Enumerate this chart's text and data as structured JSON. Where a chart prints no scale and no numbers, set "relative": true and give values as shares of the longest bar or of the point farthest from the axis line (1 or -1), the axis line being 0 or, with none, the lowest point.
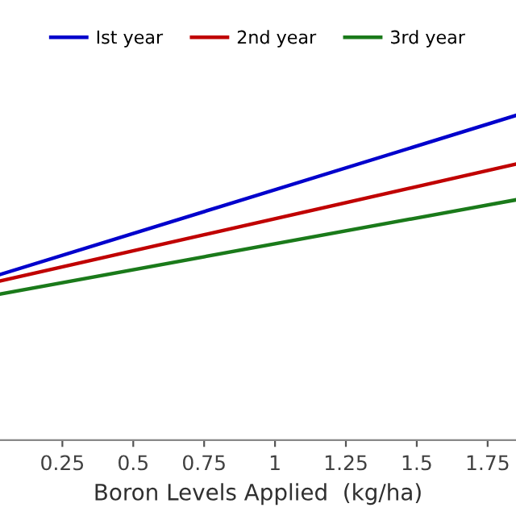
{
  "chart_data": {
    "type": "line",
    "xlabel": "Boron Levels Applied  (kg/ha)",
    "relative": true,
    "xlim": [
      0.03,
      1.85
    ],
    "xticks": [
      0.25,
      0.5,
      0.75,
      1,
      1.25,
      1.5,
      1.75
    ],
    "x": [
      0.03,
      1.85
    ],
    "series": [
      {
        "name": "Ist year",
        "color": "#0000cc",
        "values": [
          0.51,
          1
        ]
      },
      {
        "name": "2nd year",
        "color": "#c00000",
        "values": [
          0.49,
          0.85
        ]
      },
      {
        "name": "3rd year",
        "color": "#1a7a1a",
        "values": [
          0.45,
          0.74
        ]
      }
    ],
    "legend": "top",
    "grid": false,
    "marker": "none",
    "line_style": "solid"
  }
}
